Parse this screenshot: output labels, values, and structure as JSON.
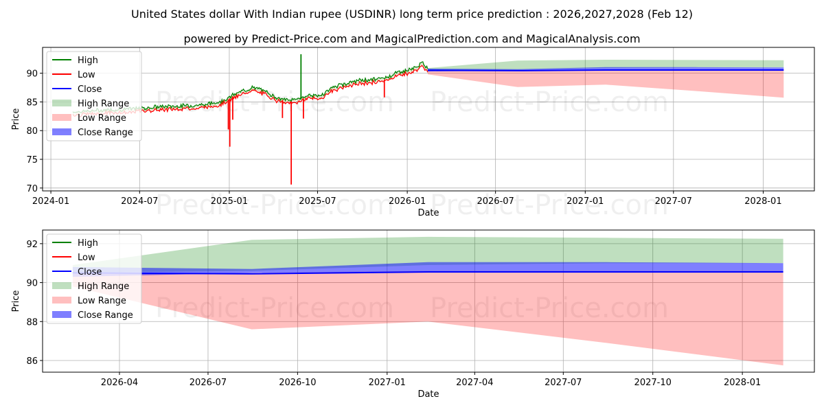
{
  "figure": {
    "title": "United States dollar With Indian rupee (USDINR) long term price prediction : 2026,2027,2028 (Feb 12)",
    "subtitle": "powered by Predict-Price.com and MagicalPrediction.com and MagicalAnalysis.com",
    "watermark": "Predict-Price.com"
  },
  "legend": [
    {
      "label": "High",
      "kind": "line",
      "color": "#008000"
    },
    {
      "label": "Low",
      "kind": "line",
      "color": "#ff0000"
    },
    {
      "label": "Close",
      "kind": "line",
      "color": "#0000ff"
    },
    {
      "label": "High Range",
      "kind": "patch",
      "color": "#008000"
    },
    {
      "label": "Low Range",
      "kind": "patch",
      "color": "#ff0000"
    },
    {
      "label": "Close Range",
      "kind": "patch",
      "color": "#0000ff"
    }
  ],
  "chart_data": [
    {
      "type": "line",
      "title": "United States dollar With Indian rupee (USDINR) long term price prediction : 2026,2027,2028 (Feb 12)",
      "xlabel": "Date",
      "ylabel": "Price",
      "xlim": [
        "2023-12-15",
        "2028-04-15"
      ],
      "ylim": [
        69.5,
        94.5
      ],
      "yticks": [
        70,
        75,
        80,
        85,
        90
      ],
      "xticks": [
        "2024-01",
        "2024-07",
        "2025-01",
        "2025-07",
        "2026-01",
        "2026-07",
        "2027-01",
        "2027-07",
        "2028-01"
      ],
      "grid": true,
      "legend_position": "upper-left",
      "history_close": {
        "x": [
          "2024-02-15",
          "2024-03-15",
          "2024-04-15",
          "2024-05-15",
          "2024-06-15",
          "2024-07-15",
          "2024-08-15",
          "2024-09-15",
          "2024-10-15",
          "2024-11-15",
          "2024-12-15",
          "2025-01-01",
          "2025-01-15",
          "2025-02-01",
          "2025-02-15",
          "2025-03-01",
          "2025-03-15",
          "2025-04-01",
          "2025-04-15",
          "2025-05-01",
          "2025-05-15",
          "2025-06-01",
          "2025-06-15",
          "2025-07-01",
          "2025-07-15",
          "2025-08-01",
          "2025-08-15",
          "2025-09-01",
          "2025-09-15",
          "2025-10-01",
          "2025-10-15",
          "2025-11-01",
          "2025-11-15",
          "2025-12-01",
          "2025-12-15",
          "2026-01-01",
          "2026-01-15",
          "2026-02-01",
          "2026-02-12"
        ],
        "y": [
          83.0,
          83.1,
          83.3,
          83.4,
          83.5,
          83.7,
          83.9,
          84.0,
          84.1,
          84.3,
          84.8,
          85.5,
          86.2,
          86.7,
          87.2,
          87.0,
          86.6,
          85.8,
          85.3,
          85.0,
          85.2,
          85.5,
          86.0,
          85.7,
          86.2,
          87.3,
          87.6,
          88.0,
          88.3,
          88.5,
          88.6,
          88.7,
          88.9,
          89.4,
          90.0,
          90.2,
          90.6,
          91.5,
          90.6
        ]
      },
      "history_spikes": [
        {
          "date": "2024-12-30",
          "series": "Low",
          "value": 80.2
        },
        {
          "date": "2025-01-02",
          "series": "Low",
          "value": 77.2
        },
        {
          "date": "2025-01-08",
          "series": "Low",
          "value": 81.9
        },
        {
          "date": "2025-04-20",
          "series": "Low",
          "value": 82.2
        },
        {
          "date": "2025-05-08",
          "series": "Low",
          "value": 70.6
        },
        {
          "date": "2025-05-28",
          "series": "High",
          "value": 93.3
        },
        {
          "date": "2025-06-02",
          "series": "Low",
          "value": 82.1
        },
        {
          "date": "2025-11-15",
          "series": "Low",
          "value": 85.8
        }
      ],
      "forecast": {
        "x": [
          "2026-02-12",
          "2026-08-15",
          "2027-02-12",
          "2027-08-15",
          "2028-02-12"
        ],
        "close": [
          90.5,
          90.45,
          90.55,
          90.55,
          90.55
        ],
        "high_range": [
          [
            90.5,
            90.9
          ],
          [
            90.6,
            92.2
          ],
          [
            90.9,
            92.35
          ],
          [
            91.0,
            92.3
          ],
          [
            91.0,
            92.25
          ]
        ],
        "low_range": [
          [
            89.8,
            90.5
          ],
          [
            87.6,
            90.5
          ],
          [
            88.0,
            90.6
          ],
          [
            86.9,
            90.6
          ],
          [
            85.75,
            90.6
          ]
        ],
        "close_range": [
          [
            90.3,
            90.8
          ],
          [
            90.5,
            90.7
          ],
          [
            90.55,
            91.05
          ],
          [
            90.55,
            91.05
          ],
          [
            90.55,
            91.0
          ]
        ]
      }
    },
    {
      "type": "line",
      "xlabel": "Date",
      "ylabel": "Price",
      "xlim": [
        "2026-01-12",
        "2028-03-15"
      ],
      "ylim": [
        85.4,
        92.7
      ],
      "yticks": [
        86,
        88,
        90,
        92
      ],
      "xticks": [
        "2026-04",
        "2026-07",
        "2026-10",
        "2027-01",
        "2027-04",
        "2027-07",
        "2027-10",
        "2028-01"
      ],
      "grid": true,
      "legend_position": "upper-left",
      "series": [
        {
          "name": "Close",
          "x": [
            "2026-02-12",
            "2026-08-15",
            "2027-02-12",
            "2027-08-15",
            "2028-02-12"
          ],
          "values": [
            90.5,
            90.45,
            90.55,
            90.55,
            90.55
          ]
        }
      ],
      "bands": [
        {
          "name": "High Range",
          "x": [
            "2026-02-12",
            "2026-08-15",
            "2027-02-12",
            "2027-08-15",
            "2028-02-12"
          ],
          "lower": [
            90.5,
            90.6,
            90.9,
            91.0,
            91.0
          ],
          "upper": [
            90.9,
            92.2,
            92.35,
            92.3,
            92.25
          ]
        },
        {
          "name": "Low Range",
          "x": [
            "2026-02-12",
            "2026-08-15",
            "2027-02-12",
            "2027-08-15",
            "2028-02-12"
          ],
          "lower": [
            89.8,
            87.6,
            88.0,
            86.9,
            85.75
          ],
          "upper": [
            90.5,
            90.5,
            90.6,
            90.6,
            90.6
          ]
        },
        {
          "name": "Close Range",
          "x": [
            "2026-02-12",
            "2026-08-15",
            "2027-02-12",
            "2027-08-15",
            "2028-02-12"
          ],
          "lower": [
            90.3,
            90.5,
            90.55,
            90.55,
            90.55
          ],
          "upper": [
            90.8,
            90.7,
            91.05,
            91.05,
            91.0
          ]
        }
      ]
    }
  ]
}
